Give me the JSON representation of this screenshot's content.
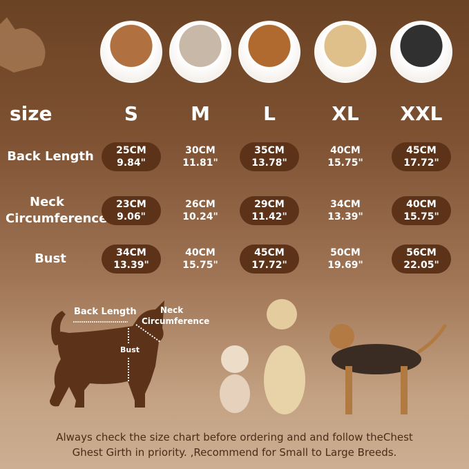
{
  "header": {
    "size_label": "size",
    "sizes": [
      "S",
      "M",
      "L",
      "XL",
      "XXL"
    ]
  },
  "dog_photos": [
    {
      "icon": "beagle-photo",
      "color": "#b07040"
    },
    {
      "icon": "french-bulldog-photo",
      "color": "#c8b8a8"
    },
    {
      "icon": "cocker-spaniel-photo",
      "color": "#b06a30"
    },
    {
      "icon": "golden-retriever-photo",
      "color": "#e0c08a"
    },
    {
      "icon": "border-collie-photo",
      "color": "#303030"
    }
  ],
  "rows": [
    {
      "label": "Back Length",
      "values": [
        [
          "25CM",
          "9.84\""
        ],
        [
          "30CM",
          "11.81\""
        ],
        [
          "35CM",
          "13.78\""
        ],
        [
          "40CM",
          "15.75\""
        ],
        [
          "45CM",
          "17.72\""
        ]
      ]
    },
    {
      "label": "Neck Circumference",
      "values": [
        [
          "23CM",
          "9.06\""
        ],
        [
          "26CM",
          "10.24\""
        ],
        [
          "29CM",
          "11.42\""
        ],
        [
          "34CM",
          "13.39\""
        ],
        [
          "40CM",
          "15.75\""
        ]
      ]
    },
    {
      "label": "Bust",
      "values": [
        [
          "34CM",
          "13.39\""
        ],
        [
          "40CM",
          "15.75\""
        ],
        [
          "45CM",
          "17.72\""
        ],
        [
          "50CM",
          "19.69\""
        ],
        [
          "56CM",
          "22.05\""
        ]
      ]
    }
  ],
  "diagram": {
    "back_length": "Back Length",
    "neck": "Neck",
    "circumference": "Circumference",
    "bust": "Bust"
  },
  "footer": {
    "line1": "Always check the size chart before ordering and and follow theChest",
    "line2": "Ghest Girth in priority. ,Recommend for Small to Large Breeds."
  },
  "colors": {
    "pill": "#5c3319",
    "silhouette": "#5c3319"
  }
}
